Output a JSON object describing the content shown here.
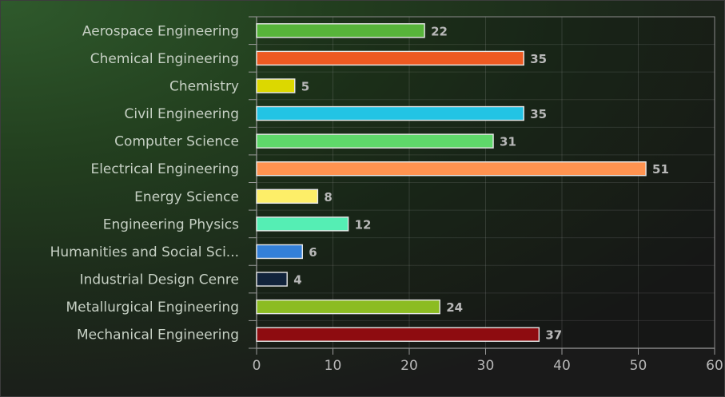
{
  "chart_data": {
    "type": "bar",
    "orientation": "horizontal",
    "title": "",
    "xlabel": "",
    "ylabel": "",
    "categories": [
      "Aerospace Engineering",
      "Chemical Engineering",
      "Chemistry",
      "Civil Engineering",
      "Computer Science",
      "Electrical Engineering",
      "Energy Science",
      "Engineering Physics",
      "Humanities and Social Sci...",
      "Industrial Design Cenre",
      "Metallurgical Engineering",
      "Mechanical Engineering"
    ],
    "values": [
      22,
      35,
      5,
      35,
      31,
      51,
      8,
      12,
      6,
      4,
      24,
      37
    ],
    "colors": [
      "#57b43a",
      "#ee5a22",
      "#dcd800",
      "#22c4e4",
      "#5fd86a",
      "#ff9350",
      "#fdee68",
      "#55eeb4",
      "#3480d8",
      "#12243c",
      "#8cbc22",
      "#8e0c10"
    ],
    "xlim": [
      0,
      60
    ],
    "xticks": [
      0,
      10,
      20,
      30,
      40,
      50,
      60
    ],
    "grid": true,
    "legend": "none"
  }
}
